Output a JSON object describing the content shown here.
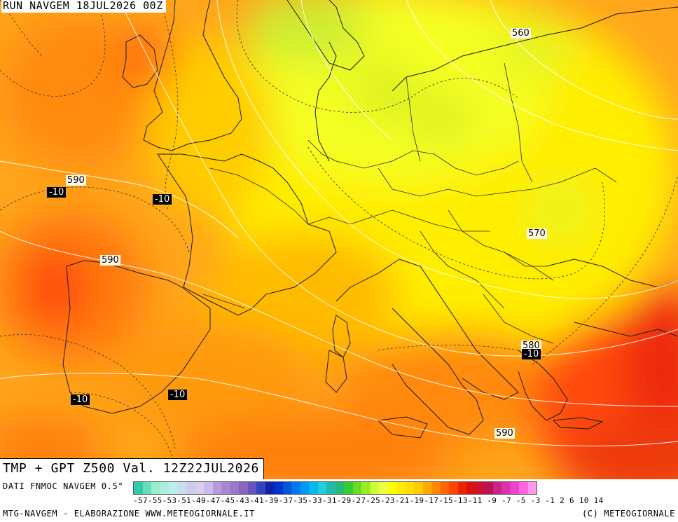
{
  "run_label": "RUN NAVGEM 18JUL2026 00Z",
  "title": "TMP + GPT Z500 Val. 12Z22JUL2026",
  "gpt_labels": [
    "560",
    "570",
    "580",
    "590",
    "590",
    "590"
  ],
  "tmp_labels": [
    "-10",
    "-10",
    "-10",
    "-10",
    "-10"
  ],
  "legend": {
    "source": "DATI FNMOC NAVGEM 0.5°",
    "ticks": "-57-55-53-51-49-47-45-43-41-39-37-35-33-31-29-27-25-23-21-19-17-15-13-11 -9 -7 -5 -3 -1  2  6 10 14",
    "colors": [
      "#33ccaa",
      "#66ddbb",
      "#99eecc",
      "#aaeedd",
      "#bbeeee",
      "#ccddee",
      "#ccccee",
      "#ddccee",
      "#ccbbee",
      "#bb99dd",
      "#aa88cc",
      "#9977cc",
      "#8866bb",
      "#6655bb",
      "#3344bb",
      "#1122aa",
      "#0033cc",
      "#0055dd",
      "#0077ee",
      "#0099ee",
      "#00bbee",
      "#22ccdd",
      "#22bbaa",
      "#22bb77",
      "#33cc33",
      "#66dd22",
      "#99ee22",
      "#ccff33",
      "#eeff44",
      "#ffff00",
      "#ffee00",
      "#ffdd00",
      "#ffcc00",
      "#ffaa00",
      "#ff8800",
      "#ff6600",
      "#ff4400",
      "#ee2200",
      "#dd1111",
      "#cc1133",
      "#bb1155",
      "#cc2288",
      "#dd33aa",
      "#ee44cc",
      "#ff66dd",
      "#ff99ee"
    ]
  },
  "credit_left": "MTG-NAVGEM - ELABORAZIONE WWW.METEOGIORNALE.IT",
  "credit_right": "(C) METEOGIORNALE"
}
